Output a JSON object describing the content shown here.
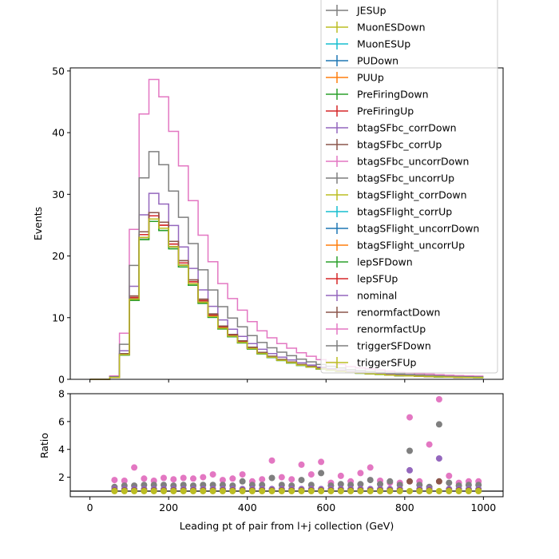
{
  "chart_data": [
    {
      "panel": "main",
      "type": "line",
      "style": "step histogram, multiple systematic variations",
      "xlabel": "",
      "ylabel": "Events",
      "xlim": [
        -50,
        1050
      ],
      "ylim": [
        0,
        50.5
      ],
      "yticks": [
        0,
        10,
        20,
        30,
        40,
        50
      ],
      "grid": false,
      "legend_placement": "top-right (extends above axes)",
      "bin_width": 25,
      "bin_start": 0,
      "shape_nominal": [
        0,
        0,
        0.3,
        4.0,
        13.0,
        23.0,
        26.0,
        24.5,
        21.5,
        18.5,
        15.5,
        12.5,
        10.2,
        8.3,
        7.0,
        6.0,
        5.0,
        4.2,
        3.6,
        3.1,
        2.7,
        2.3,
        2.0,
        1.7,
        1.5,
        1.3,
        1.1,
        1.0,
        0.9,
        0.8,
        0.7,
        0.6,
        0.55,
        0.5,
        0.45,
        0.4,
        0.35,
        0.32,
        0.3,
        0.28
      ],
      "series": [
        {
          "name": "JESUp",
          "color": "#7f7f7f",
          "scale": 1.0
        },
        {
          "name": "MuonESDown",
          "color": "#bcbd22",
          "scale": 1.0
        },
        {
          "name": "MuonESUp",
          "color": "#17becf",
          "scale": 1.0
        },
        {
          "name": "PUDown",
          "color": "#1f77b4",
          "scale": 1.0
        },
        {
          "name": "PUUp",
          "color": "#ff7f0e",
          "scale": 1.0
        },
        {
          "name": "PreFiringDown",
          "color": "#2ca02c",
          "scale": 0.985
        },
        {
          "name": "PreFiringUp",
          "color": "#d62728",
          "scale": 1.02
        },
        {
          "name": "btagSFbc_corrDown",
          "color": "#9467bd",
          "scale": 1.0
        },
        {
          "name": "btagSFbc_corrUp",
          "color": "#8c564b",
          "scale": 1.04
        },
        {
          "name": "btagSFbc_uncorrDown",
          "color": "#e377c2",
          "scale": 1.0
        },
        {
          "name": "btagSFbc_uncorrUp",
          "color": "#7f7f7f",
          "scale": 1.0
        },
        {
          "name": "btagSFlight_corrDown",
          "color": "#bcbd22",
          "scale": 1.0
        },
        {
          "name": "btagSFlight_corrUp",
          "color": "#17becf",
          "scale": 1.0
        },
        {
          "name": "btagSFlight_uncorrDown",
          "color": "#1f77b4",
          "scale": 1.0
        },
        {
          "name": "btagSFlight_uncorrUp",
          "color": "#ff7f0e",
          "scale": 1.0
        },
        {
          "name": "lepSFDown",
          "color": "#2ca02c",
          "scale": 0.985
        },
        {
          "name": "lepSFUp",
          "color": "#d62728",
          "scale": 1.02
        },
        {
          "name": "nominal",
          "color": "#9467bd",
          "scale": 1.16
        },
        {
          "name": "renormfactDown",
          "color": "#8c564b",
          "scale": 1.04
        },
        {
          "name": "renormfactUp",
          "color": "#e377c2",
          "scale": 1.87
        },
        {
          "name": "triggerSFDown",
          "color": "#7f7f7f",
          "scale": 1.42
        },
        {
          "name": "triggerSFUp",
          "color": "#bcbd22",
          "scale": 1.0
        }
      ]
    },
    {
      "panel": "ratio",
      "type": "scatter",
      "xlabel": "Leading pt of pair from l+j collection (GeV)",
      "ylabel": "Ratio",
      "xlim": [
        -50,
        1050
      ],
      "ylim": [
        0.6,
        8
      ],
      "yticks": [
        2,
        4,
        6,
        8
      ],
      "xticks": [
        0,
        200,
        400,
        600,
        800,
        1000
      ],
      "reference_line": 1,
      "x": [
        62.5,
        87.5,
        112.5,
        137.5,
        162.5,
        187.5,
        212.5,
        237.5,
        262.5,
        287.5,
        312.5,
        337.5,
        362.5,
        387.5,
        412.5,
        437.5,
        462.5,
        487.5,
        512.5,
        537.5,
        562.5,
        587.5,
        612.5,
        637.5,
        662.5,
        687.5,
        712.5,
        737.5,
        762.5,
        787.5,
        812.5,
        837.5,
        862.5,
        887.5,
        912.5,
        937.5,
        962.5,
        987.5
      ],
      "series": [
        {
          "name": "renormfactUp",
          "color": "#e377c2",
          "values": [
            1.8,
            1.75,
            2.7,
            1.9,
            1.75,
            1.95,
            1.85,
            1.95,
            1.9,
            2.0,
            2.2,
            1.8,
            1.9,
            2.2,
            1.7,
            1.85,
            3.2,
            2.0,
            1.85,
            2.9,
            2.2,
            3.1,
            1.6,
            2.1,
            1.7,
            2.3,
            2.7,
            1.75,
            1.6,
            1.6,
            6.3,
            1.7,
            4.35,
            7.6,
            2.1,
            1.6,
            1.7,
            1.7
          ]
        },
        {
          "name": "triggerSFDown",
          "color": "#7f7f7f",
          "values": [
            1.3,
            1.4,
            1.4,
            1.45,
            1.45,
            1.45,
            1.4,
            1.45,
            1.4,
            1.45,
            1.45,
            1.45,
            1.4,
            1.7,
            1.45,
            1.45,
            1.95,
            1.45,
            1.4,
            1.8,
            1.45,
            2.3,
            1.4,
            1.5,
            1.45,
            1.5,
            1.8,
            1.5,
            1.7,
            1.45,
            3.9,
            1.45,
            1.3,
            5.8,
            1.6,
            1.4,
            1.45,
            1.45
          ]
        },
        {
          "name": "nominal",
          "color": "#9467bd",
          "values": [
            1.15,
            1.15,
            1.15,
            1.15,
            1.15,
            1.15,
            1.15,
            1.15,
            1.15,
            1.15,
            1.15,
            1.15,
            1.15,
            1.15,
            1.15,
            1.15,
            1.15,
            1.15,
            1.15,
            1.15,
            1.15,
            1.15,
            1.15,
            1.15,
            1.15,
            1.15,
            1.15,
            1.15,
            1.15,
            1.15,
            2.5,
            1.15,
            1.15,
            3.35,
            1.15,
            1.15,
            1.15,
            1.15
          ]
        },
        {
          "name": "renormfactDown",
          "color": "#8c564b",
          "values": [
            1.05,
            1.05,
            1.05,
            1.05,
            1.05,
            1.05,
            1.05,
            1.05,
            1.05,
            1.05,
            1.05,
            1.05,
            1.05,
            1.05,
            1.05,
            1.05,
            1.05,
            1.05,
            1.05,
            1.05,
            1.05,
            1.05,
            1.05,
            1.05,
            1.05,
            1.05,
            1.05,
            1.05,
            1.05,
            1.05,
            1.7,
            1.05,
            1.05,
            1.7,
            1.05,
            1.05,
            1.05,
            1.05
          ]
        },
        {
          "name": "triggerSFUp",
          "color": "#bcbd22",
          "values": [
            1.0,
            1.0,
            1.0,
            1.0,
            1.0,
            1.0,
            1.0,
            1.0,
            1.0,
            1.0,
            1.0,
            1.0,
            1.0,
            1.0,
            1.0,
            1.0,
            1.0,
            1.0,
            1.0,
            1.0,
            1.0,
            1.0,
            1.0,
            1.0,
            1.0,
            1.0,
            1.0,
            1.0,
            1.0,
            1.0,
            1.0,
            1.0,
            1.0,
            1.0,
            1.0,
            1.0,
            1.0,
            1.0
          ]
        }
      ]
    }
  ]
}
